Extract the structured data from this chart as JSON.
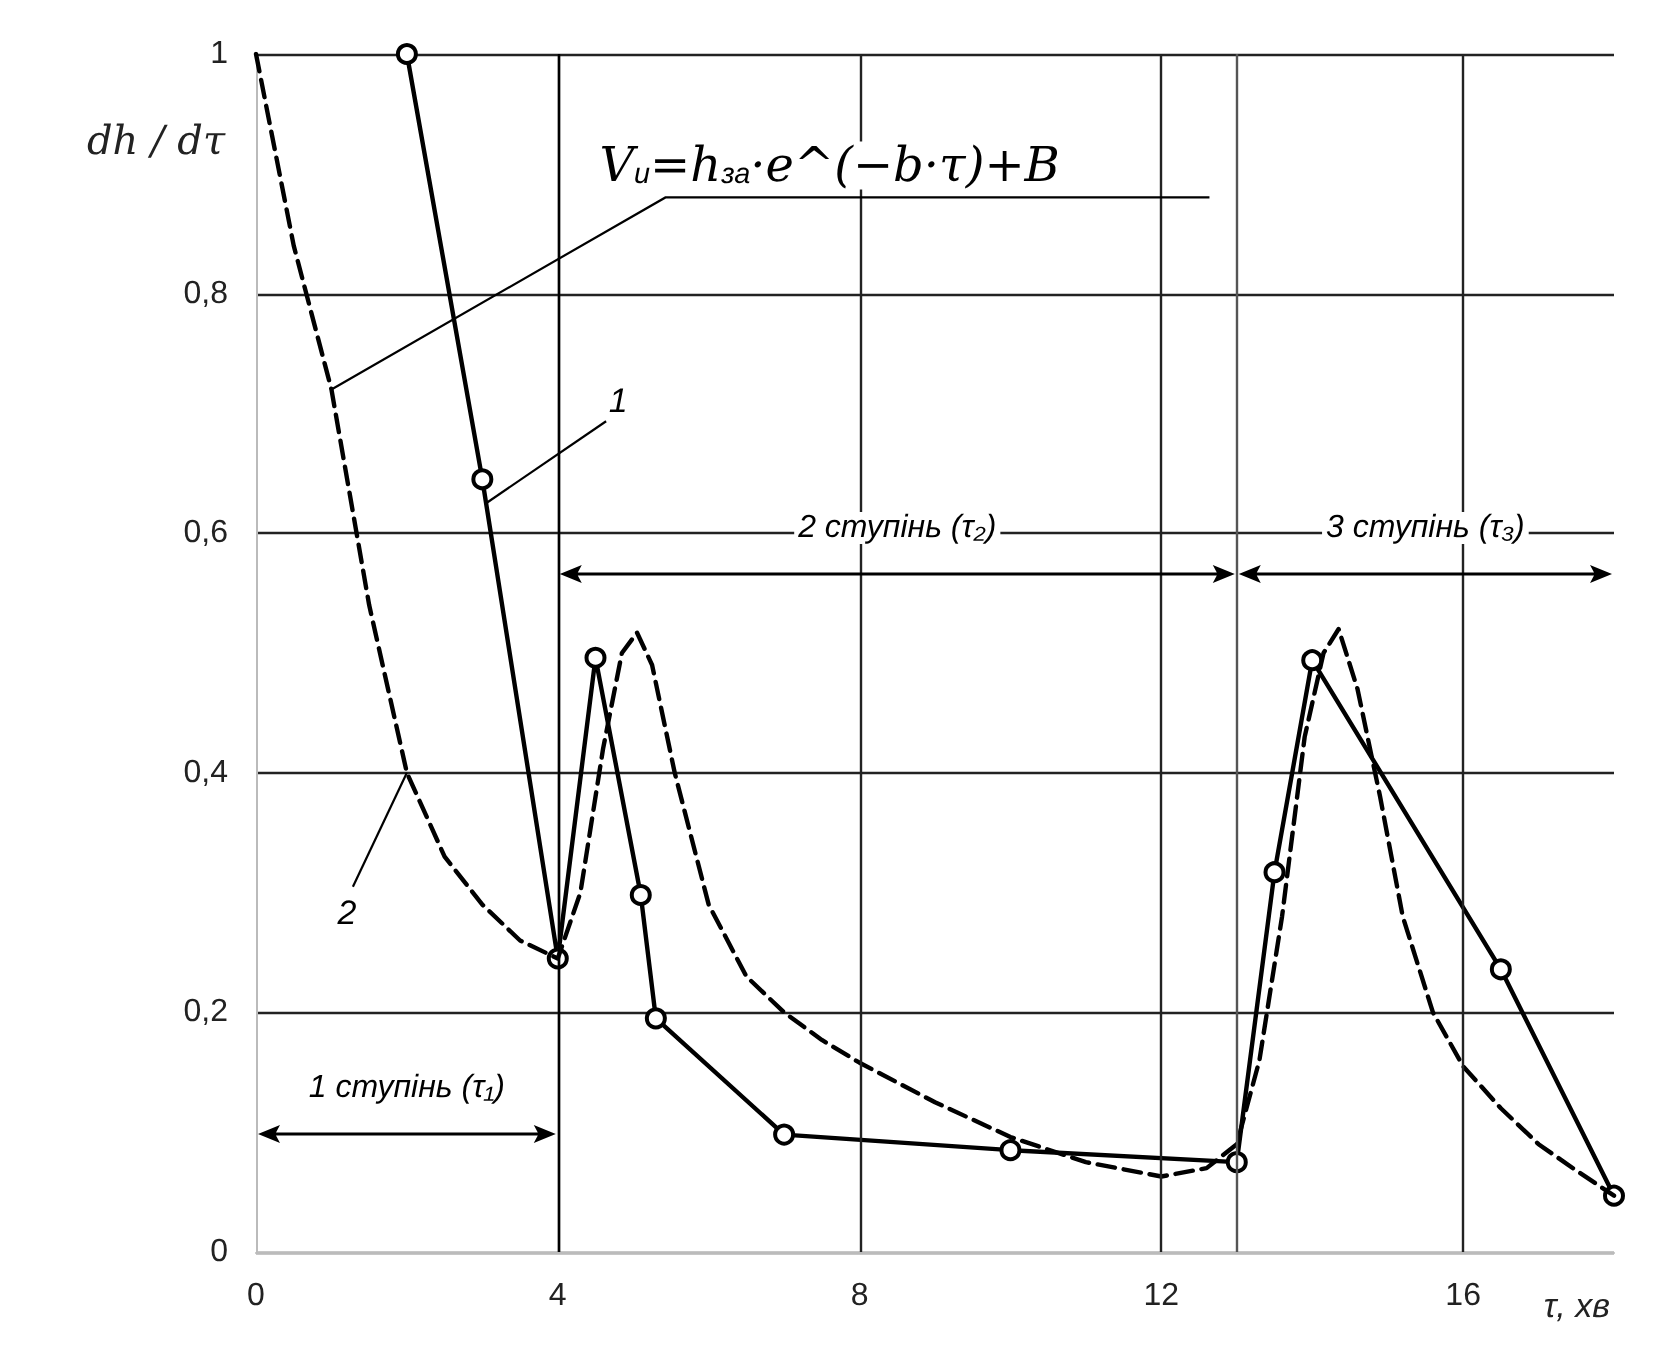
{
  "chart_data": {
    "type": "line",
    "xlabel": "τ, хв",
    "ylabel": "dh / dτ",
    "xlim": [
      0,
      18
    ],
    "ylim": [
      0,
      1
    ],
    "xticks": [
      0,
      4,
      8,
      12,
      16
    ],
    "yticks": [
      0,
      {
        "value": 0.2,
        "label": "0,2"
      },
      {
        "value": 0.4,
        "label": "0,4"
      },
      {
        "value": 0.6,
        "label": "0,6"
      },
      {
        "value": 0.8,
        "label": "0,8"
      },
      1
    ],
    "grid": true,
    "series": [
      {
        "color": "#000000",
        "marker": "circle",
        "line_style": "solid",
        "x": [
          2,
          3,
          4,
          4.5,
          5.1,
          5.3,
          7,
          10,
          13,
          13.5,
          14,
          16.5,
          18
        ],
        "values": [
          1,
          0.645,
          0.245,
          0.496,
          0.298,
          0.195,
          0.098,
          0.085,
          0.075,
          0.317,
          0.494,
          0.236,
          0.047
        ]
      },
      {
        "color": "#000000",
        "marker": "none",
        "line_style": "dashed",
        "x": [
          0,
          0.5,
          1,
          1.5,
          2,
          2.5,
          3,
          3.5,
          4,
          4.3,
          4.6,
          4.85,
          5.05,
          5.25,
          5.55,
          6,
          6.5,
          7,
          7.5,
          8,
          9,
          10,
          11,
          12,
          12.6,
          13,
          13.3,
          13.6,
          13.9,
          14.15,
          14.35,
          14.6,
          14.9,
          15.2,
          15.6,
          16,
          16.5,
          17,
          17.5,
          18
        ],
        "values": [
          1,
          0.84,
          0.72,
          0.54,
          0.4,
          0.33,
          0.29,
          0.26,
          0.245,
          0.3,
          0.42,
          0.5,
          0.517,
          0.49,
          0.4,
          0.29,
          0.23,
          0.2,
          0.177,
          0.158,
          0.125,
          0.096,
          0.075,
          0.063,
          0.07,
          0.09,
          0.16,
          0.28,
          0.43,
          0.5,
          0.52,
          0.47,
          0.38,
          0.28,
          0.2,
          0.155,
          0.12,
          0.09,
          0.068,
          0.047
        ]
      }
    ],
    "ref_lines": [
      {
        "axis": "x",
        "value": 4,
        "color": "#000000"
      },
      {
        "axis": "x",
        "value": 13,
        "color": "#555555"
      }
    ],
    "annotations": [
      {
        "text": "V$_{и}$=h$_{за}$·e^(−b·τ)+B",
        "x": 1,
        "y": 0.72
      },
      {
        "text": "1",
        "x": 3.05,
        "y": 0.625
      },
      {
        "text": "2",
        "x": 2,
        "y": 0.4
      },
      "1 ступінь (τ₁)",
      "2 ступінь (τ₂)",
      "3 ступінь (τ₃)"
    ]
  }
}
